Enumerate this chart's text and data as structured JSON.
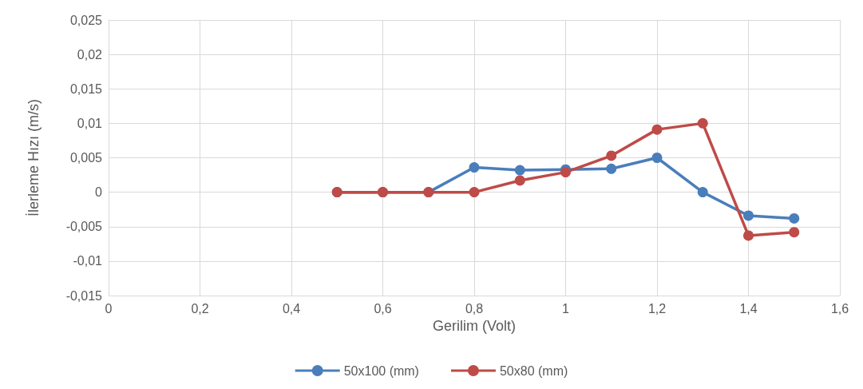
{
  "chart_data": {
    "type": "line",
    "xlabel": "Gerilim (Volt)",
    "ylabel": "İlerleme Hızı (m/s)",
    "x": [
      0.5,
      0.6,
      0.7,
      0.8,
      0.9,
      1.0,
      1.1,
      1.2,
      1.3,
      1.4,
      1.5
    ],
    "series": [
      {
        "name": "50x100 (mm)",
        "color": "#4a7ebb",
        "values": [
          0,
          0,
          0,
          0.0036,
          0.0032,
          0.0033,
          0.0034,
          0.005,
          0,
          -0.0034,
          -0.0038
        ]
      },
      {
        "name": "50x80 (mm)",
        "color": "#be4b48",
        "values": [
          0,
          0,
          0,
          0,
          0.0017,
          0.0029,
          0.0053,
          0.0091,
          0.01,
          -0.0063,
          -0.0058
        ]
      }
    ],
    "xlim": [
      0,
      1.6
    ],
    "xticks": [
      0,
      {
        "value": 0.2,
        "label": "0,2"
      },
      {
        "value": 0.4,
        "label": "0,4"
      },
      {
        "value": 0.6,
        "label": "0,6"
      },
      {
        "value": 0.8,
        "label": "0,8"
      },
      1,
      {
        "value": 1.2,
        "label": "1,2"
      },
      {
        "value": 1.4,
        "label": "1,4"
      },
      {
        "value": 1.6,
        "label": "1,6"
      }
    ],
    "ylim": [
      -0.015,
      0.025
    ],
    "yticks": [
      {
        "value": -0.015,
        "label": "-0,015"
      },
      {
        "value": -0.01,
        "label": "-0,01"
      },
      {
        "value": -0.005,
        "label": "-0,005"
      },
      0,
      {
        "value": 0.005,
        "label": "0,005"
      },
      {
        "value": 0.01,
        "label": "0,01"
      },
      {
        "value": 0.015,
        "label": "0,015"
      },
      {
        "value": 0.02,
        "label": "0,02"
      },
      {
        "value": 0.025,
        "label": "0,025"
      }
    ],
    "grid": true,
    "legend": "bottom",
    "marker": "circle",
    "line_style": "solid"
  }
}
